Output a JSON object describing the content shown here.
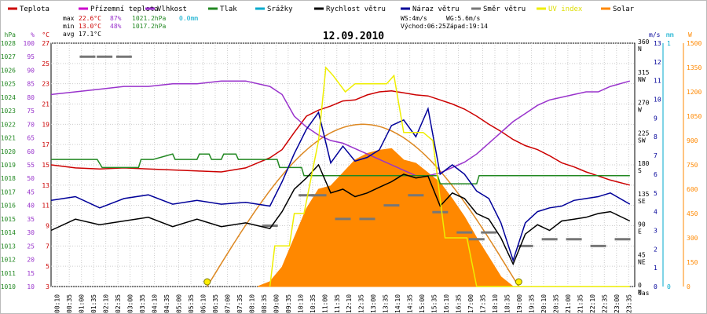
{
  "chart_data": {
    "type": "line",
    "title": "12.09.2010",
    "legend": [
      {
        "name": "Teplota",
        "color": "#cc0000"
      },
      {
        "name": "Přízemní teplota",
        "color": "#cc00cc"
      },
      {
        "name": "Vlhkost",
        "color": "#9933cc"
      },
      {
        "name": "Tlak",
        "color": "#228822"
      },
      {
        "name": "Srážky",
        "color": "#00aacc"
      },
      {
        "name": "Rychlost větru",
        "color": "#000000"
      },
      {
        "name": "Náraz větru",
        "color": "#000099"
      },
      {
        "name": "Směr větru",
        "color": "#777777"
      },
      {
        "name": "UV index",
        "color": "#eeee00"
      },
      {
        "name": "Solar",
        "color": "#ff8800"
      }
    ],
    "stats": {
      "max": {
        "label": "max",
        "temp": "22.6°C",
        "hum": "87%",
        "press": "1021.2hPa",
        "rain": "0.0mm"
      },
      "min": {
        "label": "min",
        "temp": "13.0°C",
        "hum": "48%",
        "press": "1017.2hPa"
      },
      "avg": {
        "label": "avg",
        "temp": "17.1°C"
      }
    },
    "wind_info": {
      "ws": "WS:4m/s",
      "wg": "WG:5.6m/s",
      "sunrise": "Východ:06:25",
      "sunset": "Západ:19:14"
    },
    "axes": {
      "hpa": {
        "unit": "hPa",
        "ticks": [
          "1028",
          "1027",
          "1026",
          "1025",
          "1024",
          "1023",
          "1022",
          "1021",
          "1020",
          "1019",
          "1018",
          "1017",
          "1016",
          "1015",
          "1014",
          "1013",
          "1012",
          "1011",
          "1010"
        ],
        "range": [
          1010,
          1028
        ]
      },
      "percent": {
        "unit": "%",
        "ticks": [
          "100",
          "95",
          "90",
          "85",
          "80",
          "75",
          "70",
          "65",
          "60",
          "55",
          "50",
          "45",
          "40",
          "35",
          "30",
          "25",
          "20",
          "15",
          "10"
        ],
        "range": [
          10,
          100
        ]
      },
      "temp": {
        "unit": "°C",
        "ticks": [
          "27",
          "25",
          "23",
          "21",
          "19",
          "17",
          "15",
          "13",
          "11",
          "9",
          "7",
          "5",
          "3"
        ],
        "range": [
          3,
          27
        ]
      },
      "dir": {
        "unit": "°",
        "ticks": [
          {
            "deg": "360",
            "comp": "N"
          },
          {
            "deg": "315",
            "comp": "NW"
          },
          {
            "deg": "270",
            "comp": "W"
          },
          {
            "deg": "225",
            "comp": "SW"
          },
          {
            "deg": "180",
            "comp": "S"
          },
          {
            "deg": "135",
            "comp": "SE"
          },
          {
            "deg": "90",
            "comp": "E"
          },
          {
            "deg": "45",
            "comp": "NE"
          },
          {
            "deg": "0",
            "comp": "N"
          }
        ]
      },
      "ms": {
        "unit": "m/s",
        "ticks": [
          "13",
          "12",
          "11",
          "10",
          "9",
          "8",
          "7",
          "6",
          "5",
          "4",
          "3",
          "2",
          "1",
          "0"
        ],
        "range": [
          0,
          13
        ]
      },
      "mm": {
        "unit": "mm",
        "ticks": [
          "1",
          "0"
        ]
      },
      "watt": {
        "unit": "W",
        "ticks": [
          "1500",
          "1350",
          "1200",
          "1050",
          "900",
          "750",
          "600",
          "450",
          "300",
          "150",
          "0"
        ],
        "range": [
          0,
          1500
        ]
      },
      "x_label": "čas",
      "x_ticks": [
        "00:10",
        "00:35",
        "01:00",
        "01:35",
        "02:10",
        "02:35",
        "03:00",
        "03:35",
        "04:10",
        "04:35",
        "05:00",
        "05:35",
        "06:10",
        "06:35",
        "07:00",
        "07:35",
        "08:10",
        "08:35",
        "09:00",
        "09:35",
        "10:10",
        "10:35",
        "11:00",
        "11:35",
        "12:10",
        "12:35",
        "13:00",
        "13:35",
        "14:10",
        "14:35",
        "15:00",
        "15:35",
        "16:10",
        "16:35",
        "17:00",
        "17:35",
        "18:10",
        "18:35",
        "19:00",
        "19:35",
        "20:10",
        "20:35",
        "21:00",
        "21:35",
        "22:10",
        "22:35",
        "23:00",
        "23:35"
      ]
    },
    "series": [
      {
        "name": "Teplota",
        "axis": "temp",
        "color": "#cc0000",
        "x": [
          0,
          1,
          2,
          3,
          4,
          5,
          6,
          7,
          8,
          9,
          9.5,
          10,
          10.5,
          11,
          11.5,
          12,
          12.5,
          13,
          13.5,
          14,
          14.5,
          15,
          15.5,
          16,
          16.5,
          17,
          17.5,
          18,
          18.5,
          19,
          19.5,
          20,
          20.5,
          21,
          21.5,
          22,
          22.5,
          23,
          23.8
        ],
        "values": [
          15.0,
          14.7,
          14.6,
          14.7,
          14.6,
          14.5,
          14.4,
          14.3,
          14.7,
          15.7,
          16.5,
          18.2,
          19.8,
          20.4,
          20.8,
          21.3,
          21.4,
          21.9,
          22.2,
          22.3,
          22.1,
          21.9,
          21.8,
          21.4,
          21.0,
          20.5,
          19.8,
          19.0,
          18.3,
          17.5,
          16.9,
          16.5,
          15.9,
          15.2,
          14.8,
          14.3,
          13.9,
          13.5,
          13.0
        ]
      },
      {
        "name": "Vlhkost",
        "axis": "percent",
        "color": "#9933cc",
        "x": [
          0,
          1,
          2,
          3,
          4,
          5,
          6,
          7,
          8,
          9,
          9.5,
          10,
          10.5,
          11,
          11.5,
          12,
          12.5,
          13,
          13.5,
          14,
          14.5,
          15,
          15.5,
          16,
          16.5,
          17,
          17.5,
          18,
          18.5,
          19,
          19.5,
          20,
          20.5,
          21,
          21.5,
          22,
          22.5,
          23,
          23.8
        ],
        "values": [
          81,
          82,
          83,
          84,
          84,
          85,
          85,
          86,
          86,
          84,
          81,
          73,
          69,
          66,
          64,
          63,
          61,
          59,
          57,
          55,
          53,
          51,
          51,
          52,
          54,
          56,
          59,
          63,
          67,
          71,
          74,
          77,
          79,
          80,
          81,
          82,
          82,
          84,
          86
        ]
      },
      {
        "name": "Tlak",
        "axis": "hpa",
        "color": "#228822",
        "x": [
          0,
          1.9,
          2,
          2.1,
          3.6,
          3.7,
          4.2,
          5.0,
          5.1,
          6.0,
          6.1,
          6.5,
          6.6,
          7.0,
          7.1,
          7.6,
          7.7,
          8.0,
          8.1,
          9.3,
          9.4,
          10.3,
          10.4,
          15.9,
          16.0,
          17.5,
          17.6,
          18.0,
          18.1,
          23.8
        ],
        "values": [
          1019.4,
          1019.4,
          1019.1,
          1018.8,
          1018.8,
          1019.4,
          1019.4,
          1019.8,
          1019.4,
          1019.4,
          1019.8,
          1019.8,
          1019.4,
          1019.4,
          1019.8,
          1019.8,
          1019.4,
          1019.4,
          1019.4,
          1019.4,
          1018.8,
          1018.8,
          1018.2,
          1018.2,
          1017.6,
          1017.6,
          1018.2,
          1018.2,
          1018.2,
          1018.2
        ]
      },
      {
        "name": "Rychlost větru",
        "axis": "ms",
        "color": "#000000",
        "x": [
          0,
          1,
          2,
          3,
          4,
          5,
          6,
          7,
          8,
          9,
          9.5,
          10,
          10.5,
          11,
          11.5,
          12,
          12.5,
          13,
          13.5,
          14,
          14.5,
          15,
          15.5,
          16,
          16.5,
          17,
          17.5,
          18,
          18.5,
          19,
          19.5,
          20,
          20.5,
          21,
          21.5,
          22,
          22.5,
          23,
          23.8
        ],
        "values": [
          3.0,
          3.6,
          3.3,
          3.5,
          3.7,
          3.2,
          3.6,
          3.2,
          3.4,
          3.1,
          4.0,
          5.2,
          5.8,
          6.5,
          5.0,
          5.2,
          4.8,
          5.0,
          5.3,
          5.6,
          6.0,
          5.8,
          5.9,
          4.3,
          5.0,
          4.7,
          3.9,
          3.6,
          2.6,
          1.2,
          2.8,
          3.3,
          3.0,
          3.5,
          3.6,
          3.7,
          3.9,
          4.0,
          3.5
        ]
      },
      {
        "name": "Náraz větru",
        "axis": "ms",
        "color": "#000099",
        "x": [
          0,
          1,
          2,
          3,
          4,
          5,
          6,
          7,
          8,
          9,
          9.5,
          10,
          10.5,
          11,
          11.5,
          12,
          12.5,
          13,
          13.5,
          14,
          14.5,
          15,
          15.5,
          16,
          16.5,
          17,
          17.5,
          18,
          18.5,
          19,
          19.5,
          20,
          20.5,
          21,
          21.5,
          22,
          22.5,
          23,
          23.8
        ],
        "values": [
          4.6,
          4.8,
          4.2,
          4.7,
          4.9,
          4.4,
          4.6,
          4.4,
          4.5,
          4.3,
          5.6,
          7.1,
          8.4,
          9.3,
          6.6,
          7.5,
          6.7,
          6.9,
          7.3,
          8.6,
          8.9,
          8.0,
          9.5,
          6.0,
          6.5,
          6.0,
          5.1,
          4.7,
          3.4,
          1.4,
          3.4,
          4.0,
          4.2,
          4.3,
          4.6,
          4.7,
          4.8,
          5.0,
          4.4
        ]
      },
      {
        "name": "UV index",
        "axis": "watt",
        "color": "#eeee00",
        "x": [
          9.0,
          9.2,
          9.8,
          10.0,
          10.4,
          11.0,
          11.3,
          11.6,
          12.1,
          12.5,
          13.8,
          14.1,
          14.5,
          15.3,
          15.7,
          16.2,
          16.8,
          17.1,
          17.5,
          23.8
        ],
        "values": [
          0,
          250,
          250,
          450,
          450,
          900,
          1350,
          1300,
          1200,
          1250,
          1250,
          1300,
          950,
          950,
          900,
          300,
          300,
          300,
          0,
          0
        ]
      },
      {
        "name": "Solar",
        "axis": "watt",
        "color": "#ff8800",
        "x": [
          8.5,
          9.0,
          9.5,
          10.0,
          10.5,
          11.0,
          11.5,
          12.0,
          12.5,
          13.0,
          13.5,
          14.0,
          14.5,
          15.0,
          15.5,
          16.0,
          16.5,
          17.0,
          17.5,
          18.0,
          18.5,
          19.0
        ],
        "values": [
          0,
          30,
          120,
          300,
          480,
          600,
          620,
          700,
          780,
          820,
          840,
          850,
          780,
          760,
          700,
          640,
          540,
          430,
          300,
          180,
          60,
          0
        ]
      }
    ],
    "solar_theoretical": {
      "peak_w": 1000,
      "sunrise_h": 6.42,
      "sunset_h": 19.23
    },
    "wind_direction": {
      "x": [
        1.5,
        2.2,
        3.0,
        9.0,
        10.5,
        11.0,
        12.0,
        13.0,
        14.0,
        15.0,
        16.0,
        17.0,
        17.5,
        18.0,
        19.5,
        20.5,
        21.5,
        22.5,
        23.5
      ],
      "values": [
        340,
        340,
        340,
        90,
        135,
        135,
        100,
        100,
        120,
        135,
        110,
        80,
        70,
        80,
        60,
        70,
        70,
        60,
        70
      ]
    },
    "ylim": [
      3,
      27
    ]
  }
}
